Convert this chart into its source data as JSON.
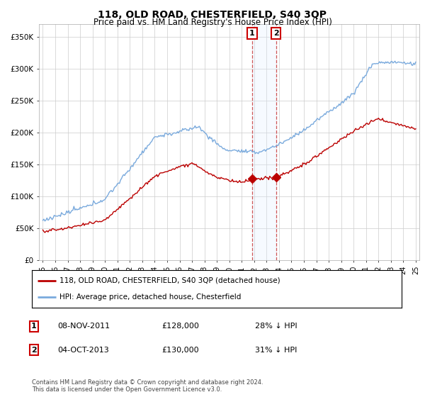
{
  "title": "118, OLD ROAD, CHESTERFIELD, S40 3QP",
  "subtitle": "Price paid vs. HM Land Registry's House Price Index (HPI)",
  "legend_line1": "118, OLD ROAD, CHESTERFIELD, S40 3QP (detached house)",
  "legend_line2": "HPI: Average price, detached house, Chesterfield",
  "annotation1_date": "08-NOV-2011",
  "annotation1_price": "£128,000",
  "annotation1_pct": "28% ↓ HPI",
  "annotation2_date": "04-OCT-2013",
  "annotation2_price": "£130,000",
  "annotation2_pct": "31% ↓ HPI",
  "footer": "Contains HM Land Registry data © Crown copyright and database right 2024.\nThis data is licensed under the Open Government Licence v3.0.",
  "hpi_color": "#7aaadd",
  "price_color": "#bb0000",
  "annotation_box_color": "#cc0000",
  "highlight_color": "#ddeeff",
  "ylim": [
    0,
    370000
  ],
  "yticks": [
    0,
    50000,
    100000,
    150000,
    200000,
    250000,
    300000,
    350000
  ],
  "ytick_labels": [
    "£0",
    "£50K",
    "£100K",
    "£150K",
    "£200K",
    "£250K",
    "£300K",
    "£350K"
  ]
}
